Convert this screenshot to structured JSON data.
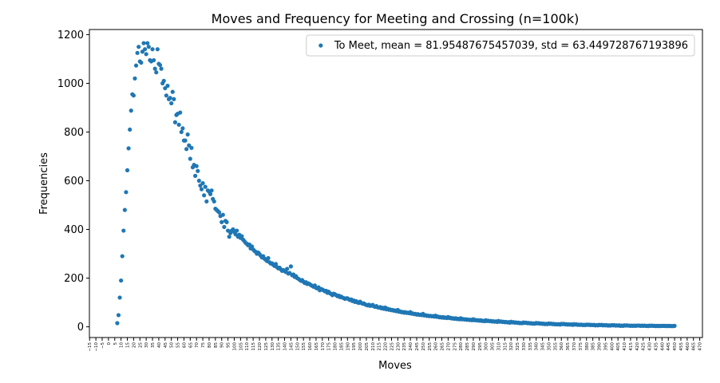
{
  "chart_data": {
    "type": "scatter",
    "title": "Moves and Frequency for Meeting and Crossing (n=100k)",
    "xlabel": "Moves",
    "ylabel": "Frequencies",
    "legend": "upper right",
    "xlim": [
      -15.15,
      472.15
    ],
    "ylim": [
      -44,
      1221
    ],
    "xticks": [
      {
        "value": -15,
        "label": "−15"
      },
      {
        "value": -10,
        "label": "−10"
      },
      {
        "value": -5,
        "label": "−5"
      },
      0,
      5,
      10,
      15,
      20,
      25,
      30,
      35,
      40,
      45,
      50,
      55,
      60,
      65,
      70,
      75,
      80,
      85,
      90,
      95,
      100,
      105,
      110,
      115,
      120,
      125,
      130,
      135,
      140,
      145,
      150,
      155,
      160,
      165,
      170,
      175,
      180,
      185,
      190,
      195,
      200,
      205,
      210,
      215,
      220,
      225,
      230,
      235,
      240,
      245,
      250,
      255,
      260,
      265,
      270,
      275,
      280,
      285,
      290,
      295,
      300,
      305,
      310,
      315,
      320,
      325,
      330,
      335,
      340,
      345,
      350,
      355,
      360,
      365,
      370,
      375,
      380,
      385,
      390,
      395,
      400,
      405,
      410,
      415,
      420,
      425,
      430,
      435,
      440,
      445,
      450,
      455,
      460,
      465,
      470
    ],
    "yticks": [
      0,
      200,
      400,
      600,
      800,
      1000,
      1200
    ],
    "series": [
      {
        "name": "To Meet, mean = 81.95487675457039, std = 63.449728767193896",
        "color": "#1f77b4",
        "x": [
          7,
          8,
          9,
          10,
          11,
          12,
          13,
          14,
          15,
          16,
          17,
          18,
          19,
          20,
          21,
          22,
          23,
          24,
          25,
          26,
          27,
          28,
          29,
          30,
          31,
          32,
          33,
          34,
          35,
          36,
          37,
          38,
          39,
          40,
          41,
          42,
          43,
          44,
          45,
          46,
          47,
          48,
          49,
          50,
          51,
          52,
          53,
          54,
          55,
          56,
          57,
          58,
          59,
          60,
          61,
          62,
          63,
          64,
          65,
          66,
          67,
          68,
          69,
          70,
          71,
          72,
          73,
          74,
          75,
          76,
          77,
          78,
          79,
          80,
          81,
          82,
          83,
          84,
          85,
          86,
          87,
          88,
          89,
          90,
          91,
          92,
          93,
          94,
          95,
          96,
          97,
          98,
          99,
          100,
          101,
          102,
          103,
          104,
          105,
          106,
          107,
          108,
          109,
          110,
          111,
          112,
          113,
          114,
          115,
          116,
          117,
          118,
          119,
          120,
          121,
          122,
          123,
          124,
          125,
          126,
          127,
          128,
          129,
          130,
          131,
          132,
          133,
          134,
          135,
          136,
          137,
          138,
          139,
          140,
          141,
          142,
          143,
          144,
          145,
          146,
          147,
          148,
          149,
          150,
          151,
          152,
          153,
          154,
          155,
          156,
          157,
          158,
          159,
          160,
          161,
          162,
          163,
          164,
          165,
          166,
          167,
          168,
          169,
          170,
          171,
          172,
          173,
          174,
          175,
          176,
          177,
          178,
          179,
          180,
          181,
          182,
          183,
          184,
          185,
          186,
          187,
          188,
          189,
          190,
          191,
          192,
          193,
          194,
          195,
          196,
          197,
          198,
          199,
          200,
          201,
          202,
          203,
          204,
          205,
          206,
          207,
          208,
          209,
          210,
          211,
          212,
          213,
          214,
          215,
          216,
          217,
          218,
          219,
          220,
          221,
          222,
          223,
          224,
          225,
          226,
          227,
          228,
          229,
          230,
          231,
          232,
          233,
          234,
          235,
          236,
          237,
          238,
          239,
          240,
          241,
          242,
          243,
          244,
          245,
          246,
          247,
          248,
          249,
          250,
          251,
          252,
          253,
          254,
          255,
          256,
          257,
          258,
          259,
          260,
          261,
          262,
          263,
          264,
          265,
          266,
          267,
          268,
          269,
          270,
          271,
          272,
          273,
          274,
          275,
          276,
          277,
          278,
          279,
          280,
          281,
          282,
          283,
          284,
          285,
          286,
          287,
          288,
          289,
          290,
          291,
          292,
          293,
          294,
          295,
          296,
          297,
          298,
          299,
          300,
          301,
          302,
          303,
          304,
          305,
          306,
          307,
          308,
          309,
          310,
          311,
          312,
          313,
          314,
          315,
          316,
          317,
          318,
          319,
          320,
          321,
          322,
          323,
          324,
          325,
          326,
          327,
          328,
          329,
          330,
          331,
          332,
          333,
          334,
          335,
          336,
          337,
          338,
          339,
          340,
          341,
          342,
          343,
          344,
          345,
          346,
          347,
          348,
          349,
          350,
          351,
          352,
          353,
          354,
          355,
          356,
          357,
          358,
          359,
          360,
          361,
          362,
          363,
          364,
          365,
          366,
          367,
          368,
          369,
          370,
          371,
          372,
          373,
          374,
          375,
          376,
          377,
          378,
          379,
          380,
          381,
          382,
          383,
          384,
          385,
          386,
          387,
          388,
          389,
          390,
          391,
          392,
          393,
          394,
          395,
          396,
          397,
          398,
          399,
          400,
          401,
          402,
          403,
          404,
          405,
          406,
          407,
          408,
          409,
          410,
          411,
          412,
          413,
          414,
          415,
          416,
          417,
          418,
          419,
          420,
          421,
          422,
          423,
          424,
          425,
          426,
          427,
          428,
          429,
          430,
          431,
          432,
          433,
          434,
          435,
          436,
          437,
          438,
          439,
          440,
          441,
          442,
          443,
          444,
          445,
          446,
          447,
          448,
          449,
          450
        ],
        "values": [
          15,
          48,
          120,
          190,
          290,
          395,
          480,
          553,
          643,
          733,
          810,
          888,
          955,
          950,
          1020,
          1073,
          1125,
          1150,
          1090,
          1085,
          1130,
          1165,
          1140,
          1120,
          1165,
          1150,
          1095,
          1090,
          1140,
          1095,
          1060,
          1045,
          1140,
          1080,
          1075,
          1060,
          1000,
          1010,
          980,
          950,
          990,
          935,
          940,
          918,
          965,
          935,
          840,
          870,
          875,
          830,
          880,
          800,
          815,
          765,
          765,
          730,
          790,
          745,
          690,
          735,
          655,
          665,
          620,
          660,
          640,
          600,
          580,
          565,
          590,
          540,
          575,
          515,
          560,
          555,
          545,
          560,
          525,
          515,
          485,
          480,
          475,
          470,
          455,
          430,
          460,
          410,
          435,
          430,
          395,
          370,
          385,
          395,
          400,
          390,
          380,
          395,
          370,
          378,
          365,
          372,
          358,
          352,
          345,
          341,
          335,
          338,
          322,
          330,
          318,
          312,
          308,
          300,
          305,
          299,
          292,
          285,
          290,
          280,
          276,
          270,
          282,
          265,
          260,
          261,
          255,
          250,
          258,
          245,
          240,
          243,
          236,
          230,
          233,
          229,
          225,
          238,
          219,
          221,
          248,
          212,
          215,
          205,
          208,
          200,
          197,
          193,
          189,
          192,
          185,
          180,
          183,
          176,
          178,
          175,
          171,
          168,
          165,
          170,
          160,
          158,
          162,
          150,
          155,
          153,
          150,
          146,
          148,
          140,
          144,
          138,
          135,
          130,
          136,
          134,
          130,
          126,
          128,
          122,
          124,
          120,
          118,
          115,
          117,
          117,
          113,
          110,
          112,
          106,
          108,
          102,
          105,
          100,
          98,
          103,
          98,
          95,
          96,
          92,
          90,
          88,
          91,
          86,
          87,
          90,
          84,
          82,
          85,
          80,
          79,
          81,
          76,
          78,
          74,
          79,
          72,
          74,
          70,
          71,
          68,
          69,
          66,
          67,
          64,
          69,
          62,
          63,
          60,
          61,
          58,
          60,
          57,
          58,
          56,
          60,
          54,
          55,
          52,
          53,
          50,
          52,
          49,
          50,
          48,
          53,
          47,
          48,
          45,
          46,
          44,
          45,
          43,
          44,
          42,
          46,
          41,
          42,
          39,
          40,
          38,
          40,
          37,
          38,
          36,
          40,
          36,
          37,
          34,
          35,
          33,
          35,
          32,
          33,
          31,
          35,
          31,
          32,
          30,
          31,
          29,
          30,
          28,
          29,
          27,
          31,
          27,
          28,
          26,
          27,
          25,
          27,
          24,
          25,
          23,
          27,
          24,
          25,
          23,
          24,
          22,
          23,
          21,
          22,
          20,
          24,
          21,
          22,
          20,
          21,
          19,
          20,
          18,
          19,
          17,
          21,
          18,
          19,
          17,
          18,
          16,
          17,
          15,
          16,
          15,
          18,
          16,
          17,
          15,
          16,
          14,
          15,
          13,
          14,
          13,
          16,
          14,
          15,
          13,
          14,
          12,
          13,
          11,
          12,
          11,
          14,
          12,
          13,
          11,
          12,
          10,
          11,
          10,
          11,
          9,
          12,
          11,
          12,
          10,
          11,
          9,
          10,
          9,
          10,
          8,
          11,
          9,
          10,
          8,
          9,
          8,
          9,
          7,
          8,
          7,
          9,
          8,
          9,
          7,
          8,
          7,
          8,
          6,
          7,
          6,
          8,
          7,
          8,
          6,
          7,
          6,
          7,
          5,
          6,
          5,
          7,
          6,
          7,
          5,
          6,
          5,
          6,
          4,
          5,
          4,
          6,
          5,
          6,
          5,
          5,
          4,
          5,
          4,
          5,
          4,
          5,
          5,
          5,
          4,
          5,
          4,
          5,
          4,
          4,
          3,
          5,
          4,
          5,
          4,
          4,
          3,
          4,
          3,
          4,
          3,
          4,
          4,
          4,
          3,
          4,
          3,
          4,
          3,
          3,
          3,
          4
        ]
      }
    ]
  }
}
